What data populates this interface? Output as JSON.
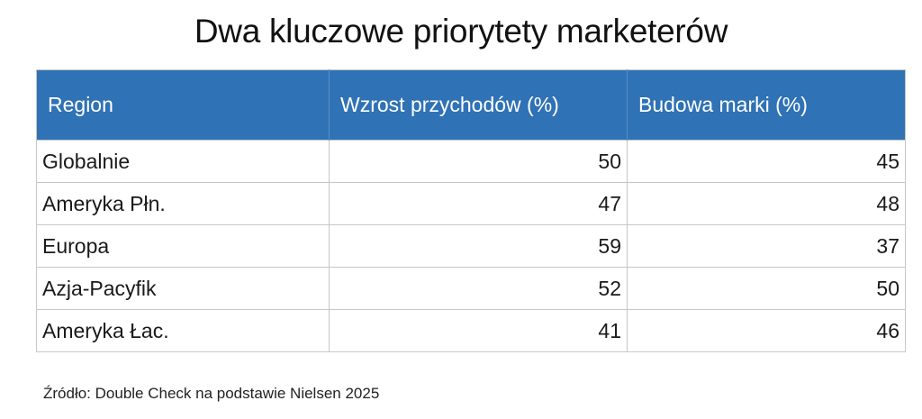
{
  "title": "Dwa kluczowe priorytety marketerów",
  "source": "Źródło: Double Check na podstawie Nielsen 2025",
  "colors": {
    "header_bg": "#2f72b5",
    "header_text": "#ffffff",
    "border": "#c7c7c7"
  },
  "chart_data": {
    "type": "table",
    "title": "Dwa kluczowe priorytety marketerów",
    "columns": [
      "Region",
      "Wzrost przychodów (%)",
      "Budowa marki (%)"
    ],
    "rows": [
      [
        "Globalnie",
        "50",
        "45"
      ],
      [
        "Ameryka Płn.",
        "47",
        "48"
      ],
      [
        "Europa",
        "59",
        "37"
      ],
      [
        "Azja-Pacyfik",
        "52",
        "50"
      ],
      [
        "Ameryka Łac.",
        "41",
        "46"
      ]
    ]
  }
}
